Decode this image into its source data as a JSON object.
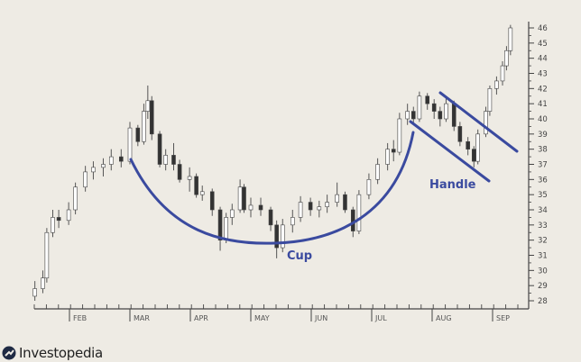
{
  "chart_data": {
    "type": "candlestick",
    "title": "",
    "xlabel": "",
    "ylabel": "",
    "ylim": [
      28,
      46
    ],
    "y_ticks": [
      28,
      29,
      30,
      31,
      32,
      33,
      34,
      35,
      36,
      37,
      38,
      39,
      40,
      41,
      42,
      43,
      44,
      45,
      46
    ],
    "x_tick_labels": [
      "FEB",
      "MAR",
      "APR",
      "MAY",
      "JUN",
      "JUL",
      "AUG",
      "SEP"
    ],
    "y_axis_position": "right",
    "grid": false,
    "colors": {
      "up_fill": "#ffffff",
      "down_fill": "#333333",
      "wick": "#555555",
      "annotation": "#3a4a9f"
    },
    "dates": [
      "01-14",
      "01-18",
      "01-20",
      "01-23",
      "01-26",
      "01-31",
      "02-04",
      "02-09",
      "02-13",
      "02-18",
      "02-22",
      "02-27",
      "03-01",
      "03-05",
      "03-08",
      "03-10",
      "03-12",
      "03-16",
      "03-19",
      "03-23",
      "03-26",
      "03-31",
      "04-04",
      "04-07",
      "04-12",
      "04-16",
      "04-19",
      "04-22",
      "04-26",
      "04-28",
      "05-01",
      "05-06",
      "05-11",
      "05-14",
      "05-17",
      "05-22",
      "05-26",
      "05-31",
      "06-05",
      "06-09",
      "06-14",
      "06-18",
      "06-22",
      "06-25",
      "06-30",
      "07-04",
      "07-09",
      "07-12",
      "07-15",
      "07-19",
      "07-22",
      "07-25",
      "07-29",
      "08-02",
      "08-05",
      "08-08",
      "08-12",
      "08-15",
      "08-19",
      "08-22",
      "08-24",
      "08-28",
      "08-30",
      "09-03",
      "09-06",
      "09-08",
      "09-10"
    ],
    "ohlc": [
      [
        28.3,
        29.3,
        28.0,
        28.8
      ],
      [
        28.8,
        30.0,
        28.5,
        29.5
      ],
      [
        29.5,
        32.8,
        29.2,
        32.5
      ],
      [
        32.5,
        34.0,
        32.2,
        33.5
      ],
      [
        33.5,
        34.0,
        32.8,
        33.3
      ],
      [
        33.3,
        34.5,
        33.0,
        34.0
      ],
      [
        34.0,
        35.8,
        33.7,
        35.5
      ],
      [
        35.5,
        36.9,
        35.2,
        36.5
      ],
      [
        36.5,
        37.2,
        36.0,
        36.8
      ],
      [
        36.8,
        37.4,
        36.2,
        37.0
      ],
      [
        37.0,
        38.0,
        36.6,
        37.5
      ],
      [
        37.5,
        38.0,
        36.8,
        37.2
      ],
      [
        37.2,
        39.8,
        37.0,
        39.4
      ],
      [
        39.4,
        39.6,
        38.2,
        38.5
      ],
      [
        38.5,
        41.0,
        38.3,
        40.5
      ],
      [
        40.5,
        42.2,
        40.0,
        41.2
      ],
      [
        41.2,
        41.5,
        38.6,
        39.0
      ],
      [
        39.0,
        39.2,
        36.8,
        37.0
      ],
      [
        37.0,
        38.0,
        36.6,
        37.6
      ],
      [
        37.6,
        38.4,
        36.6,
        37.0
      ],
      [
        37.0,
        37.3,
        35.8,
        36.0
      ],
      [
        36.0,
        36.8,
        35.2,
        36.2
      ],
      [
        36.2,
        36.4,
        34.8,
        35.0
      ],
      [
        35.0,
        35.6,
        34.6,
        35.2
      ],
      [
        35.2,
        35.4,
        33.6,
        34.0
      ],
      [
        34.0,
        34.2,
        31.3,
        32.0
      ],
      [
        32.0,
        33.8,
        31.8,
        33.5
      ],
      [
        33.5,
        34.4,
        33.0,
        34.0
      ],
      [
        34.0,
        36.0,
        33.8,
        35.5
      ],
      [
        35.5,
        35.7,
        33.8,
        34.0
      ],
      [
        34.0,
        34.8,
        33.5,
        34.3
      ],
      [
        34.3,
        34.8,
        33.6,
        34.0
      ],
      [
        34.0,
        34.2,
        32.6,
        33.0
      ],
      [
        33.0,
        33.3,
        30.8,
        31.5
      ],
      [
        31.5,
        33.4,
        31.2,
        33.0
      ],
      [
        33.0,
        34.0,
        32.5,
        33.5
      ],
      [
        33.5,
        34.9,
        33.2,
        34.5
      ],
      [
        34.5,
        34.8,
        33.6,
        34.0
      ],
      [
        34.0,
        34.6,
        33.5,
        34.2
      ],
      [
        34.2,
        35.0,
        33.8,
        34.5
      ],
      [
        34.5,
        35.8,
        34.2,
        35.0
      ],
      [
        35.0,
        35.2,
        33.8,
        34.0
      ],
      [
        34.0,
        34.2,
        32.2,
        32.6
      ],
      [
        32.6,
        35.3,
        32.4,
        35.0
      ],
      [
        35.0,
        36.4,
        34.7,
        36.0
      ],
      [
        36.0,
        37.4,
        35.7,
        37.0
      ],
      [
        37.0,
        38.4,
        36.6,
        38.0
      ],
      [
        38.0,
        38.6,
        37.2,
        37.8
      ],
      [
        37.8,
        40.4,
        37.6,
        40.0
      ],
      [
        40.0,
        41.0,
        39.6,
        40.5
      ],
      [
        40.5,
        40.8,
        39.6,
        40.0
      ],
      [
        40.0,
        41.8,
        39.8,
        41.5
      ],
      [
        41.5,
        41.7,
        40.6,
        41.0
      ],
      [
        41.0,
        41.3,
        40.0,
        40.5
      ],
      [
        40.5,
        40.8,
        39.5,
        40.0
      ],
      [
        40.0,
        41.4,
        39.8,
        41.0
      ],
      [
        41.0,
        41.2,
        39.2,
        39.5
      ],
      [
        39.5,
        39.8,
        38.2,
        38.5
      ],
      [
        38.5,
        38.8,
        37.6,
        38.0
      ],
      [
        38.0,
        38.2,
        36.8,
        37.2
      ],
      [
        37.2,
        39.3,
        37.0,
        39.0
      ],
      [
        39.0,
        40.8,
        38.8,
        40.5
      ],
      [
        40.5,
        42.2,
        40.2,
        42.0
      ],
      [
        42.0,
        42.8,
        41.6,
        42.5
      ],
      [
        42.5,
        43.8,
        42.2,
        43.5
      ],
      [
        43.5,
        44.8,
        43.2,
        44.5
      ],
      [
        44.5,
        46.2,
        44.2,
        46.0
      ]
    ],
    "annotations": [
      {
        "label": "Cup",
        "shape": "arc",
        "from_date": "03-01",
        "to_date": "07-19",
        "bottom_value": 31.9
      },
      {
        "label": "Handle",
        "shape": "parallel-lines"
      }
    ]
  },
  "footer": {
    "logo_text": "Investopedia"
  }
}
